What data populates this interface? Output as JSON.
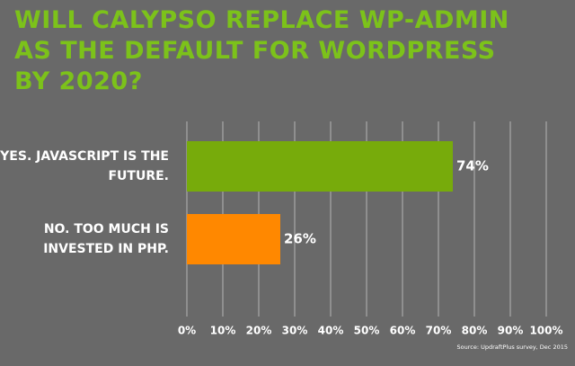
{
  "chart_data": {
    "type": "bar",
    "orientation": "horizontal",
    "title": "WILL CALYPSO REPLACE WP-ADMIN AS THE DEFAULT FOR WORDPRESS BY 2020?",
    "categories": [
      "YES. JAVASCRIPT IS THE FUTURE.",
      "NO. TOO MUCH IS INVESTED IN PHP."
    ],
    "values": [
      74,
      26
    ],
    "value_labels": [
      "74%",
      "26%"
    ],
    "colors": [
      "#77ab0b",
      "#ff8800"
    ],
    "xlim": [
      0,
      100
    ],
    "xticks": [
      {
        "value": 0,
        "label": "0%"
      },
      {
        "value": 10,
        "label": "10%"
      },
      {
        "value": 20,
        "label": "20%"
      },
      {
        "value": 30,
        "label": "30%"
      },
      {
        "value": 40,
        "label": "40%"
      },
      {
        "value": 50,
        "label": "50%"
      },
      {
        "value": 60,
        "label": "60%"
      },
      {
        "value": 70,
        "label": "70%"
      },
      {
        "value": 80,
        "label": "80%"
      },
      {
        "value": 90,
        "label": "90%"
      },
      {
        "value": 100,
        "label": "100%"
      }
    ],
    "grid": true,
    "source": "Source: UpdraftPlus survey, Dec 2015"
  }
}
